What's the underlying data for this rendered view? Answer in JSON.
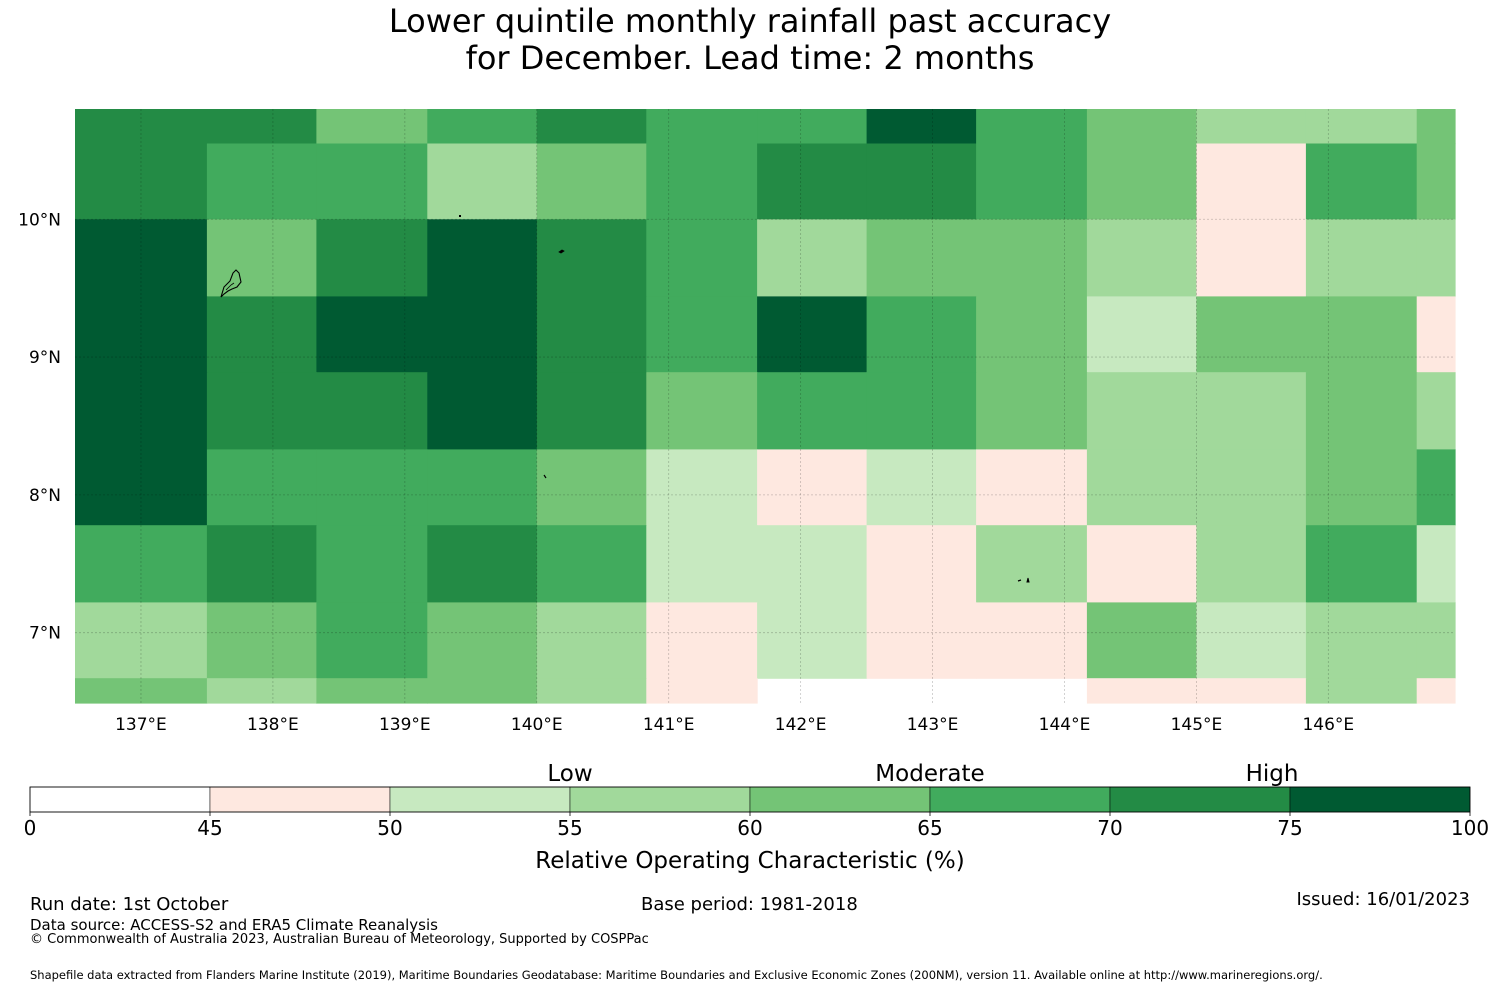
{
  "title": {
    "line1": "Lower quintile monthly rainfall past accuracy",
    "line2": "for December. Lead time: 2 months"
  },
  "chart_data": {
    "type": "heatmap",
    "title": "Lower quintile monthly rainfall past accuracy for December. Lead time: 2 months",
    "x_range": [
      136.5,
      146.96
    ],
    "y_range": [
      6.49,
      10.8
    ],
    "x_ticks": [
      137,
      138,
      139,
      140,
      141,
      142,
      143,
      144,
      145,
      146
    ],
    "x_tick_labels": [
      "137°E",
      "138°E",
      "139°E",
      "140°E",
      "141°E",
      "142°E",
      "143°E",
      "144°E",
      "145°E",
      "146°E"
    ],
    "y_ticks": [
      7,
      8,
      9,
      10
    ],
    "y_tick_labels": [
      "7°N",
      "8°N",
      "9°N",
      "10°N"
    ],
    "grid": true,
    "lon_edges": [
      137.0,
      137.5,
      138.33,
      139.17,
      140.0,
      140.83,
      141.67,
      142.5,
      143.33,
      144.17,
      145.0,
      145.83,
      146.67
    ],
    "lat_rows": [
      {
        "north": 10.8,
        "south": 10.55,
        "cells": [
          72,
          72,
          62,
          67,
          72,
          67,
          67,
          77,
          67,
          62,
          57,
          57,
          62
        ]
      },
      {
        "north": 10.55,
        "south": 10.0,
        "cells": [
          72,
          67,
          67,
          57,
          62,
          67,
          72,
          72,
          67,
          62,
          47,
          67,
          62
        ]
      },
      {
        "north": 10.0,
        "south": 9.44,
        "cells": [
          77,
          62,
          72,
          77,
          72,
          67,
          57,
          62,
          62,
          57,
          47,
          57,
          57
        ]
      },
      {
        "north": 9.44,
        "south": 8.89,
        "cells": [
          77,
          72,
          77,
          77,
          72,
          67,
          77,
          67,
          62,
          52,
          62,
          62,
          47
        ]
      },
      {
        "north": 8.89,
        "south": 8.33,
        "cells": [
          77,
          72,
          72,
          77,
          72,
          62,
          67,
          67,
          62,
          57,
          57,
          62,
          57
        ]
      },
      {
        "north": 8.33,
        "south": 7.78,
        "cells": [
          77,
          67,
          67,
          67,
          62,
          52,
          47,
          52,
          47,
          57,
          57,
          62,
          67
        ]
      },
      {
        "north": 7.78,
        "south": 7.22,
        "cells": [
          67,
          72,
          67,
          72,
          67,
          52,
          52,
          47,
          57,
          47,
          57,
          67,
          52
        ]
      },
      {
        "north": 7.22,
        "south": 6.67,
        "cells": [
          57,
          62,
          67,
          62,
          57,
          47,
          52,
          47,
          47,
          62,
          52,
          57,
          57
        ]
      },
      {
        "north": 6.67,
        "south": 6.49,
        "cells": [
          62,
          57,
          62,
          62,
          57,
          47,
          null,
          null,
          null,
          47,
          47,
          57,
          47
        ]
      }
    ],
    "colorbar": {
      "label": "Relative Operating Characteristic (%)",
      "bounds": [
        0,
        45,
        50,
        55,
        60,
        65,
        70,
        75,
        100
      ],
      "tick_labels": [
        "0",
        "45",
        "50",
        "55",
        "60",
        "65",
        "70",
        "75",
        "100"
      ],
      "colors": [
        "#ffffff",
        "#fee8e0",
        "#c7e9c0",
        "#a1d99b",
        "#74c476",
        "#41ab5d",
        "#238b45",
        "#005a32"
      ],
      "categories": [
        "Low",
        "Moderate",
        "High"
      ]
    }
  },
  "footer": {
    "run_date": "Run date: 1st October",
    "base_period": "Base period: 1981-2018",
    "issued": "Issued: 16/01/2023",
    "data_source": "Data source: ACCESS-S2 and ERA5 Climate Reanalysis",
    "copyright": "© Commonwealth of Australia 2023, Australian Bureau of Meteorology, Supported by COSPPac",
    "shapefile_note": "Shapefile data extracted from Flanders Marine Institute (2019), Maritime Boundaries Geodatabase: Maritime Boundaries and Exclusive Economic Zones (200NM), version 11. Available online at http://www.marineregions.org/."
  }
}
